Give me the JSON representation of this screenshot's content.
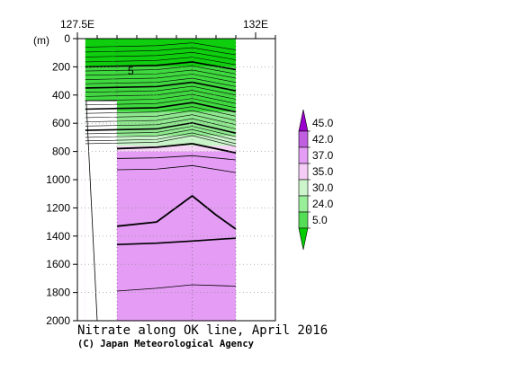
{
  "chart_data": {
    "type": "contour-section",
    "title": "Nitrate along OK line, April 2016",
    "credit": "(C) Japan Meteorological Agency",
    "ylabel": "(m)",
    "x_ticklabels": [
      {
        "label": "127.5E",
        "value": 127.5
      },
      {
        "label": "132E",
        "value": 132
      }
    ],
    "xlim": [
      127.5,
      132.5
    ],
    "ylim": [
      2000,
      0
    ],
    "y_ticks": [
      0,
      200,
      400,
      600,
      800,
      1000,
      1200,
      1400,
      1600,
      1800,
      2000
    ],
    "y_ticklabels": [
      "0",
      "200",
      "400",
      "600",
      "800",
      "1000",
      "1200",
      "1400",
      "1600",
      "1800",
      "2000"
    ],
    "data_extent": {
      "x": [
        127.7,
        131.5
      ],
      "y_max": 2000
    },
    "colorbar": {
      "labels": [
        "5.0",
        "24.0",
        "30.0",
        "35.0",
        "37.0",
        "42.0",
        "45.0"
      ],
      "levels": [
        5.0,
        24.0,
        30.0,
        35.0,
        37.0,
        42.0,
        45.0
      ],
      "colors": [
        "#00cc00",
        "#55dd55",
        "#99ee99",
        "#ccf5cc",
        "#f5ccf5",
        "#e59ef5",
        "#c060e0",
        "#9a00cc"
      ]
    },
    "contour_label": "5",
    "fills": [
      {
        "from": 0,
        "to": 200,
        "color": "#0ece0e"
      },
      {
        "from": 200,
        "to": 520,
        "color": "#3fd83f"
      },
      {
        "from": 520,
        "to": 690,
        "color": "#8fe88f"
      },
      {
        "from": 690,
        "to": 760,
        "color": "#c9f3c9"
      },
      {
        "from": 760,
        "to": 800,
        "color": "#f6d2f6"
      },
      {
        "from": 800,
        "to": 2000,
        "color": "#e49cf4"
      }
    ]
  }
}
